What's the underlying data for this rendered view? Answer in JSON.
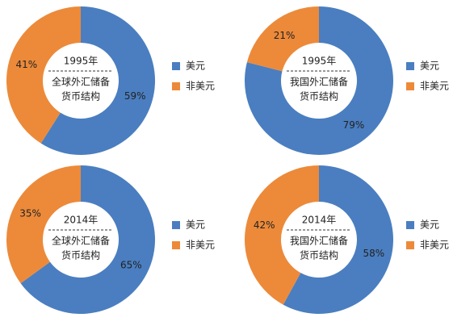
{
  "chart_data": [
    {
      "type": "donut",
      "title": "1995年",
      "subtitle": [
        "全球外汇储备",
        "货币结构"
      ],
      "categories": [
        "美元",
        "非美元"
      ],
      "values": [
        59,
        41
      ],
      "value_labels": [
        "59%",
        "41%"
      ],
      "colors": [
        "#4a7ec0",
        "#ec8a3a"
      ]
    },
    {
      "type": "donut",
      "title": "1995年",
      "subtitle": [
        "我国外汇储备",
        "货币结构"
      ],
      "categories": [
        "美元",
        "非美元"
      ],
      "values": [
        79,
        21
      ],
      "value_labels": [
        "79%",
        "21%"
      ],
      "colors": [
        "#4a7ec0",
        "#ec8a3a"
      ]
    },
    {
      "type": "donut",
      "title": "2014年",
      "subtitle": [
        "全球外汇储备",
        "货币结构"
      ],
      "categories": [
        "美元",
        "非美元"
      ],
      "values": [
        65,
        35
      ],
      "value_labels": [
        "65%",
        "35%"
      ],
      "colors": [
        "#4a7ec0",
        "#ec8a3a"
      ]
    },
    {
      "type": "donut",
      "title": "2014年",
      "subtitle": [
        "我国外汇储备",
        "货币结构"
      ],
      "categories": [
        "美元",
        "非美元"
      ],
      "values": [
        58,
        42
      ],
      "value_labels": [
        "58%",
        "42%"
      ],
      "colors": [
        "#4a7ec0",
        "#ec8a3a"
      ]
    }
  ]
}
